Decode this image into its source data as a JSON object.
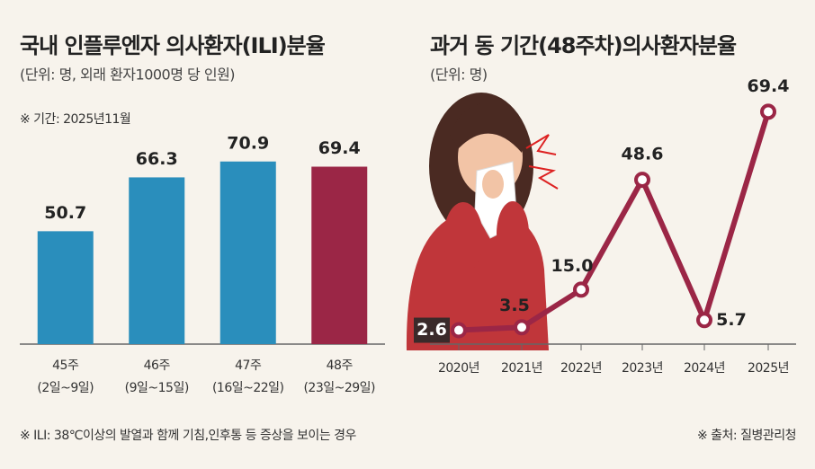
{
  "footnote": "※ ILI: 38℃이상의 발열과 함께 기침,인후통 등 증상을 보이는 경우",
  "source": "※ 출처: 질병관리청",
  "chart_data": [
    {
      "type": "bar",
      "title": "국내 인플루엔자 의사환자(ILI)분율",
      "subtitle": "(단위: 명, 외래 환자1000명 당 인원)",
      "note": "※ 기간: 2025년11월",
      "categories": [
        "45주",
        "46주",
        "47주",
        "48주"
      ],
      "periods": [
        "(2일~9일)",
        "(9일~15일)",
        "(16일~22일)",
        "(23일~29일)"
      ],
      "values": [
        50.7,
        66.3,
        70.9,
        69.4
      ],
      "colors": [
        "#2a8ebc",
        "#2a8ebc",
        "#2a8ebc",
        "#9b2646"
      ],
      "ylim": [
        18,
        75
      ]
    },
    {
      "type": "line",
      "title": "과거 동 기간(48주차)의사환자분율",
      "subtitle": "(단위: 명)",
      "categories": [
        "2020년",
        "2021년",
        "2022년",
        "2023년",
        "2024년",
        "2025년"
      ],
      "values": [
        2.6,
        3.5,
        15.0,
        48.6,
        5.7,
        69.4
      ],
      "value_labels": [
        "2.6",
        "3.5",
        "15.0",
        "48.6",
        "5.7",
        "69.4"
      ],
      "color": "#9b2646",
      "ylim": [
        0,
        75
      ]
    }
  ]
}
